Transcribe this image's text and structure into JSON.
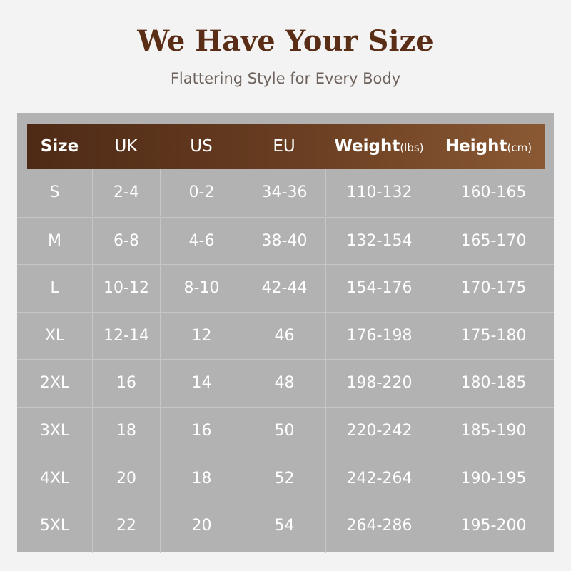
{
  "title": "We Have Your Size",
  "subtitle": "Flattering Style for Every Body",
  "table": {
    "headers": [
      {
        "label": "Size",
        "unit": ""
      },
      {
        "label": "UK",
        "unit": ""
      },
      {
        "label": "US",
        "unit": ""
      },
      {
        "label": "EU",
        "unit": ""
      },
      {
        "label": "Weight",
        "unit": "(lbs)"
      },
      {
        "label": "Height",
        "unit": "(cm)"
      }
    ],
    "rows": [
      [
        "S",
        "2-4",
        "0-2",
        "34-36",
        "110-132",
        "160-165"
      ],
      [
        "M",
        "6-8",
        "4-6",
        "38-40",
        "132-154",
        "165-170"
      ],
      [
        "L",
        "10-12",
        "8-10",
        "42-44",
        "154-176",
        "170-175"
      ],
      [
        "XL",
        "12-14",
        "12",
        "46",
        "176-198",
        "175-180"
      ],
      [
        "2XL",
        "16",
        "14",
        "48",
        "198-220",
        "180-185"
      ],
      [
        "3XL",
        "18",
        "16",
        "50",
        "220-242",
        "185-190"
      ],
      [
        "4XL",
        "20",
        "18",
        "52",
        "242-264",
        "190-195"
      ],
      [
        "5XL",
        "22",
        "20",
        "54",
        "264-286",
        "195-200"
      ]
    ]
  },
  "colors": {
    "title": "#5a2e16",
    "header_start": "#4e2a16",
    "header_end": "#8a5934",
    "table_bg": "#b2b2b2"
  }
}
